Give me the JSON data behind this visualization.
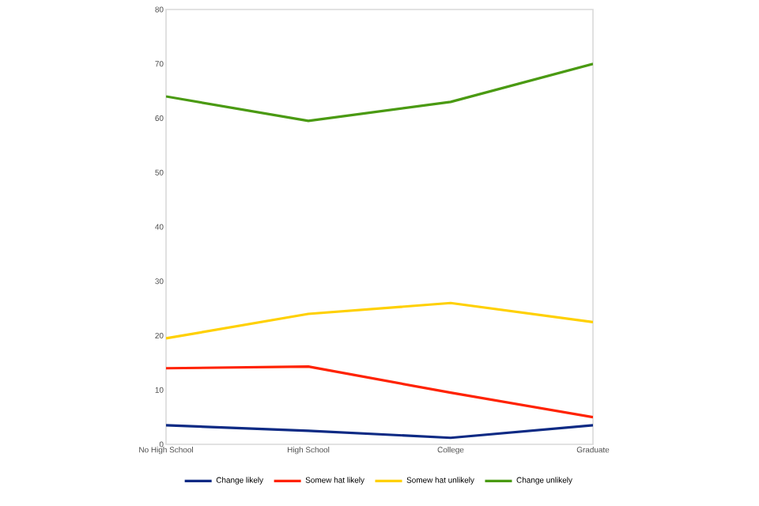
{
  "chart_data": {
    "type": "line",
    "categories": [
      "No High School",
      "High School",
      "College",
      "Graduate"
    ],
    "series": [
      {
        "name": "Change likely",
        "color": "#0d2a84",
        "values": [
          3.5,
          2.5,
          1.2,
          3.5
        ]
      },
      {
        "name": "Somew hat likely",
        "color": "#ff2200",
        "values": [
          14,
          14.3,
          9.5,
          5
        ]
      },
      {
        "name": "Somew hat unlikely",
        "color": "#ffd000",
        "values": [
          19.5,
          24,
          26,
          22.5
        ]
      },
      {
        "name": "Change unlikely",
        "color": "#4a9a12",
        "values": [
          64,
          59.5,
          63,
          70
        ]
      }
    ],
    "ylim": [
      0,
      80
    ],
    "yticks": [
      0,
      10,
      20,
      30,
      40,
      50,
      60,
      70,
      80
    ],
    "grid": false,
    "legend": "bottom",
    "marker": "none",
    "line_style": "solid"
  }
}
